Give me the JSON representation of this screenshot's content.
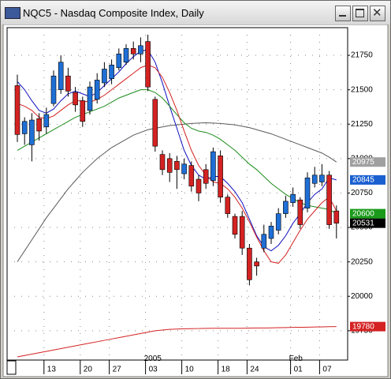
{
  "chart_data": {
    "type": "candlestick",
    "title": "NQC5 - Nasdaq Composite Index, Daily",
    "categories": [
      null,
      null,
      null,
      null,
      "13",
      null,
      null,
      null,
      null,
      "20",
      null,
      null,
      null,
      "27",
      null,
      null,
      null,
      null,
      "03",
      null,
      null,
      null,
      null,
      "10",
      null,
      null,
      null,
      null,
      "18",
      null,
      null,
      null,
      "24",
      null,
      null,
      null,
      null,
      null,
      "01",
      null,
      null,
      null,
      "07",
      null,
      null
    ],
    "categories_upper": [
      null,
      null,
      null,
      null,
      null,
      null,
      null,
      null,
      null,
      null,
      null,
      null,
      null,
      null,
      null,
      null,
      null,
      null,
      "2005",
      null,
      null,
      null,
      null,
      null,
      null,
      null,
      null,
      null,
      null,
      null,
      null,
      null,
      null,
      null,
      null,
      null,
      null,
      null,
      "Feb",
      null,
      null,
      null,
      null,
      null,
      null
    ],
    "open": [
      21530,
      21180,
      21100,
      21290,
      21230,
      21400,
      21500,
      21600,
      21480,
      21420,
      21350,
      21430,
      21550,
      21580,
      21660,
      21700,
      21800,
      21760,
      21850,
      21430,
      21030,
      21000,
      20980,
      20890,
      20950,
      20850,
      20920,
      20840,
      21020,
      20720,
      20580,
      20580,
      20350,
      20250,
      20350,
      20420,
      20480,
      20600,
      20680,
      20700,
      20640,
      20820,
      20830,
      20880,
      20620
    ],
    "high": [
      21610,
      21300,
      21330,
      21330,
      21370,
      21640,
      21750,
      21660,
      21520,
      21450,
      21560,
      21620,
      21700,
      21720,
      21800,
      21830,
      21850,
      21880,
      21900,
      21450,
      21060,
      21040,
      21020,
      21000,
      20980,
      20880,
      20960,
      21080,
      21060,
      20740,
      20600,
      20620,
      20380,
      20280,
      20520,
      20540,
      20640,
      20730,
      20790,
      20720,
      20900,
      20940,
      20960,
      20910,
      20660
    ],
    "low": [
      21120,
      21100,
      20980,
      21130,
      21180,
      21380,
      21470,
      21450,
      21340,
      21230,
      21320,
      21400,
      21520,
      21540,
      21640,
      21680,
      21720,
      21700,
      21490,
      21050,
      20880,
      20830,
      20780,
      20850,
      20760,
      20690,
      20780,
      20800,
      20680,
      20570,
      20420,
      20300,
      20080,
      20150,
      20320,
      20380,
      20450,
      20570,
      20650,
      20490,
      20610,
      20790,
      20800,
      20490,
      20420
    ],
    "close": [
      21175,
      21270,
      21280,
      21200,
      21320,
      21600,
      21700,
      21490,
      21390,
      21270,
      21520,
      21570,
      21650,
      21680,
      21760,
      21800,
      21760,
      21820,
      21520,
      21090,
      20920,
      20900,
      20920,
      20960,
      20800,
      20750,
      20820,
      21050,
      20720,
      20600,
      20450,
      20350,
      20120,
      20220,
      20450,
      20510,
      20600,
      20690,
      20740,
      20520,
      20860,
      20880,
      20880,
      20520,
      20531
    ],
    "up_color": "#1f6fd6",
    "down_color": "#d42222",
    "series": [
      {
        "color": "#5a5a5a",
        "values": [
          20250,
          20330,
          20410,
          20490,
          20570,
          20640,
          20710,
          20780,
          20840,
          20900,
          20950,
          21000,
          21040,
          21080,
          21110,
          21140,
          21170,
          21190,
          21210,
          21220,
          21230,
          21240,
          21245,
          21250,
          21255,
          21258,
          21260,
          21258,
          21255,
          21250,
          21245,
          21235,
          21225,
          21210,
          21195,
          21180,
          21160,
          21140,
          21120,
          21100,
          21080,
          21060,
          21040,
          21010,
          20975
        ],
        "label_fill": "#a0a0a0",
        "label_color": "#ffffff"
      },
      {
        "color": "#1010c0",
        "values": [
          21560,
          21500,
          21420,
          21350,
          21330,
          21360,
          21420,
          21470,
          21490,
          21470,
          21450,
          21480,
          21530,
          21580,
          21630,
          21690,
          21740,
          21780,
          21790,
          21700,
          21550,
          21380,
          21220,
          21060,
          20950,
          20880,
          20850,
          20870,
          20870,
          20820,
          20760,
          20680,
          20560,
          20440,
          20360,
          20330,
          20370,
          20440,
          20530,
          20600,
          20680,
          20740,
          20780,
          20860,
          20845
        ],
        "label_fill": "#1a5fd0",
        "label_color": "#ffffff"
      },
      {
        "color": "#1a8c1a",
        "values": [
          21060,
          21090,
          21120,
          21150,
          21180,
          21210,
          21240,
          21270,
          21300,
          21320,
          21340,
          21360,
          21380,
          21410,
          21440,
          21460,
          21480,
          21500,
          21500,
          21480,
          21440,
          21380,
          21320,
          21260,
          21220,
          21200,
          21190,
          21170,
          21140,
          21100,
          21060,
          21010,
          20960,
          20920,
          20870,
          20820,
          20780,
          20740,
          20710,
          20680,
          20660,
          20650,
          20640,
          20630,
          20600
        ],
        "label_fill": "#1a9a1a",
        "label_color": "#ffffff"
      },
      {
        "color": "#d42222",
        "values": [
          21400,
          21380,
          21350,
          21300,
          21290,
          21310,
          21350,
          21390,
          21420,
          21420,
          21410,
          21430,
          21460,
          21500,
          21540,
          21580,
          21620,
          21660,
          21680,
          21660,
          21590,
          21480,
          21350,
          21200,
          21060,
          20950,
          20880,
          20830,
          20820,
          20780,
          20720,
          20640,
          20540,
          20430,
          20330,
          20250,
          20240,
          20300,
          20390,
          20480,
          20560,
          20620,
          20680,
          20720,
          20620
        ]
      },
      {
        "color": "#d42222",
        "values": [
          19560,
          19570,
          19580,
          19590,
          19600,
          19610,
          19620,
          19630,
          19640,
          19650,
          19660,
          19670,
          19680,
          19690,
          19700,
          19710,
          19720,
          19730,
          19740,
          19750,
          19755,
          19760,
          19762,
          19764,
          19765,
          19766,
          19767,
          19768,
          19768,
          19768,
          19768,
          19768,
          19769,
          19770,
          19770,
          19771,
          19772,
          19773,
          19774,
          19775,
          19776,
          19777,
          19778,
          19779,
          19780
        ],
        "label_fill": "#d42222",
        "label_color": "#ffffff"
      }
    ],
    "last_close_fill": "#000000",
    "last_close_color": "#ffffff",
    "ylim": [
      19537,
      21951
    ],
    "yticks": [
      19750,
      20000,
      20250,
      20500,
      20750,
      21000,
      21250,
      21500,
      21750
    ],
    "grid": true
  }
}
